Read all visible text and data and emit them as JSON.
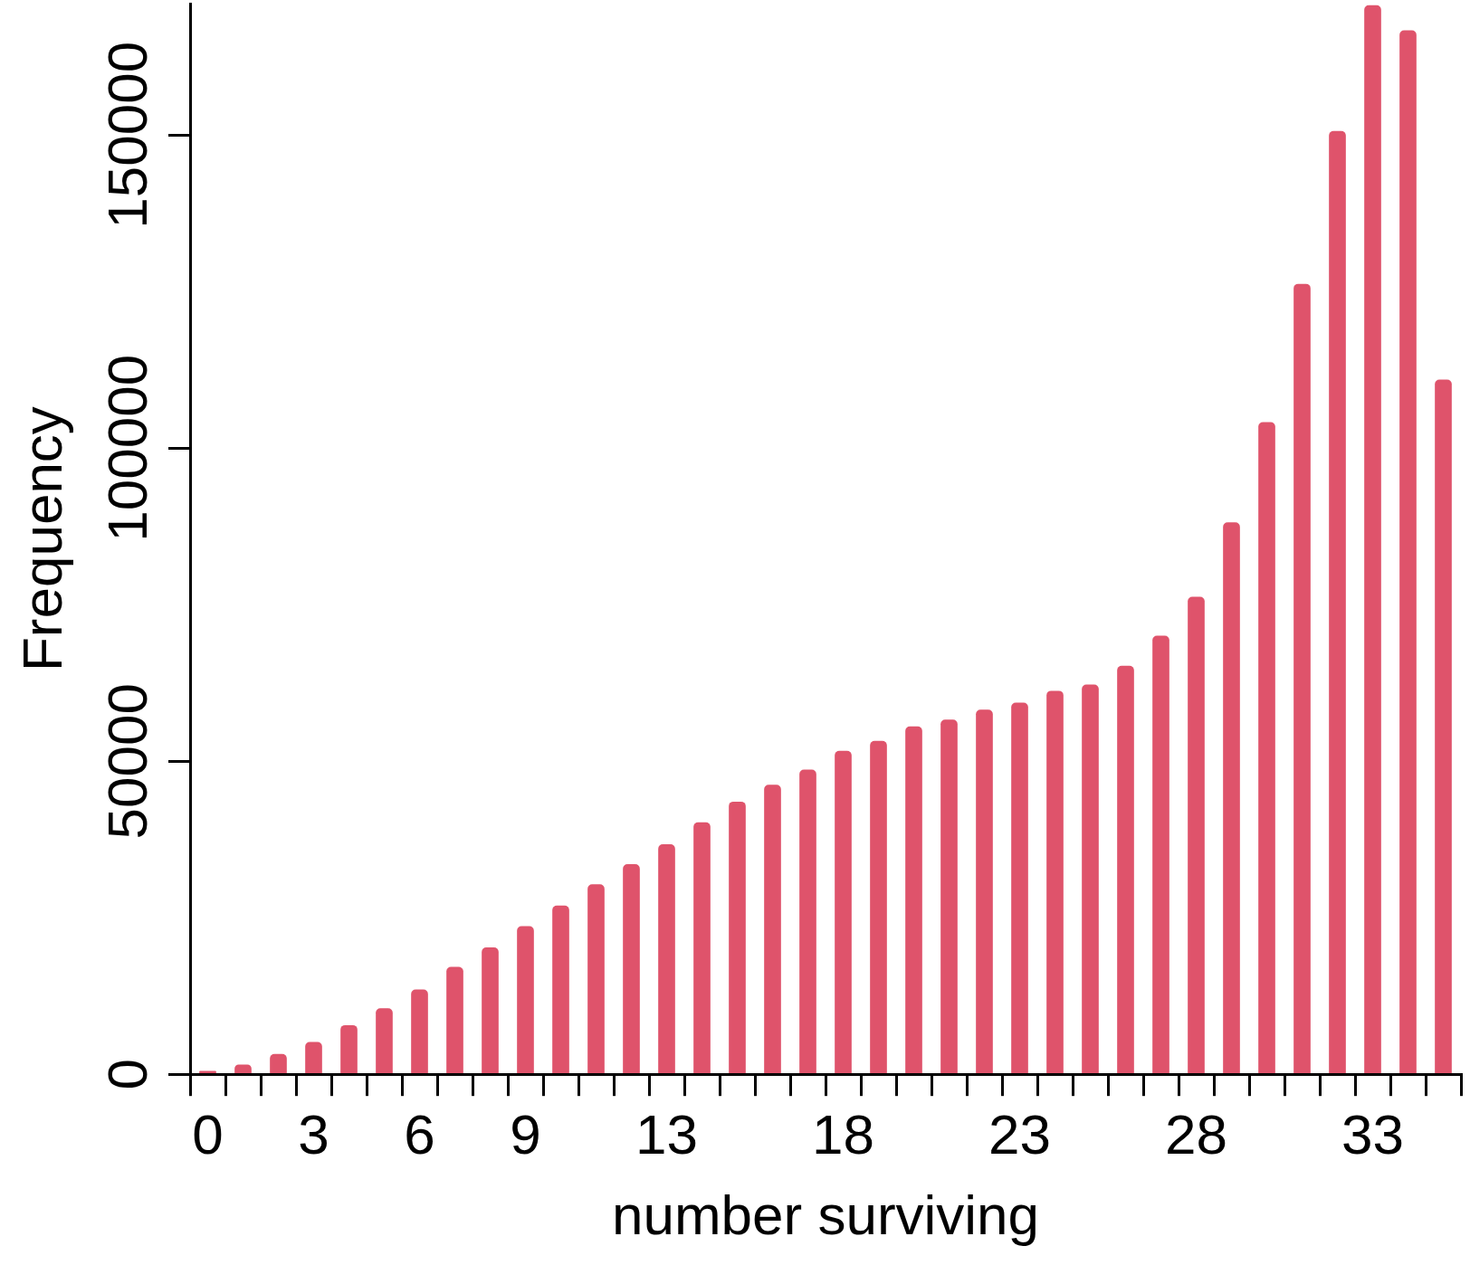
{
  "chart_data": {
    "type": "bar",
    "xlabel": "number surviving",
    "ylabel": "Frequency",
    "categories": [
      "0",
      null,
      null,
      "3",
      null,
      null,
      "6",
      null,
      null,
      "9",
      null,
      null,
      null,
      "13",
      null,
      null,
      null,
      null,
      "18",
      null,
      null,
      null,
      null,
      "23",
      null,
      null,
      null,
      null,
      "28",
      null,
      null,
      null,
      null,
      "33",
      null,
      null
    ],
    "values": [
      500,
      1500,
      3200,
      5100,
      7800,
      10500,
      13500,
      17100,
      20200,
      23600,
      26900,
      30300,
      33500,
      36700,
      40200,
      43500,
      46200,
      48600,
      51600,
      53200,
      55500,
      56600,
      58200,
      59300,
      61200,
      62200,
      65200,
      70000,
      76200,
      88100,
      104100,
      126200,
      150600,
      170700,
      166700,
      110900
    ],
    "color": "#df536b",
    "ylim": [
      0,
      171000
    ],
    "yticks": [
      0,
      50000,
      100000,
      150000
    ]
  }
}
